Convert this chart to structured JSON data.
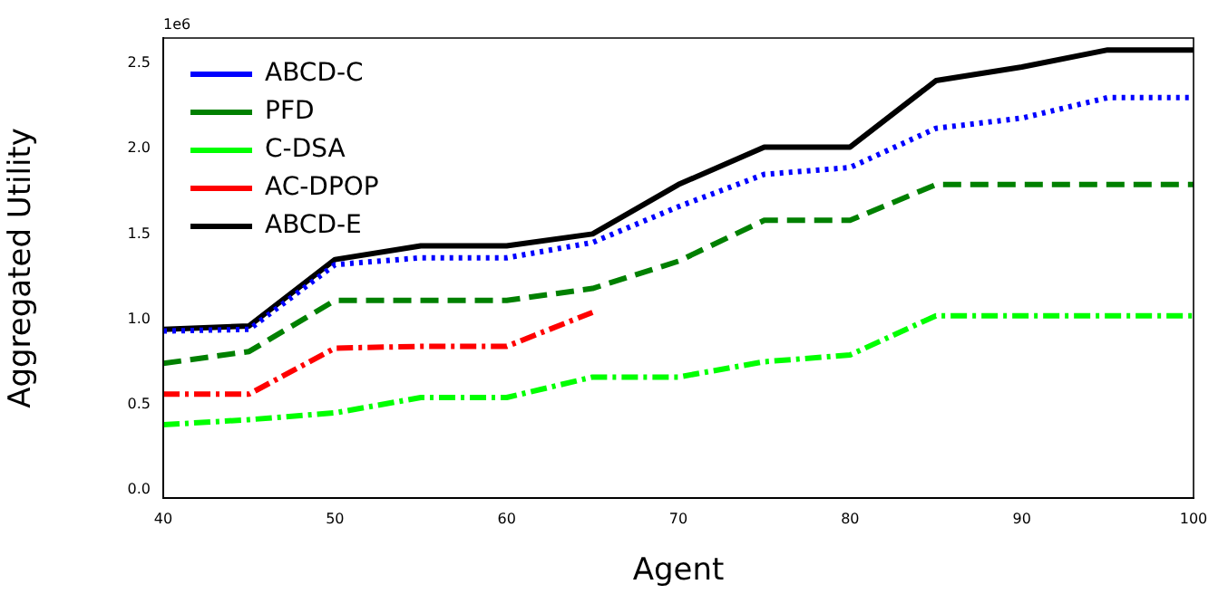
{
  "chart_data": {
    "type": "line",
    "xlabel": "Agent",
    "ylabel": "Aggregated Utility",
    "annotations": [
      "1e6"
    ],
    "x": [
      40,
      45,
      50,
      55,
      60,
      65,
      70,
      75,
      80,
      85,
      90,
      95,
      100
    ],
    "xlim": [
      40,
      100
    ],
    "xticks": [
      40,
      50,
      60,
      70,
      80,
      90,
      100
    ],
    "ylim": [
      -0.05,
      2.65
    ],
    "yticks": [
      {
        "value": 0,
        "label": "0.0"
      },
      {
        "value": 0.5,
        "label": "0.5"
      },
      {
        "value": 1,
        "label": "1.0"
      },
      {
        "value": 1.5,
        "label": "1.5"
      },
      {
        "value": 2,
        "label": "2.0"
      },
      {
        "value": 2.5,
        "label": "2.5"
      }
    ],
    "grid": false,
    "legend": "top left",
    "marker": "none",
    "series": [
      {
        "name": "ABCD-C",
        "color": "#0000ff",
        "line_style": "dotted",
        "values": [
          0.93,
          0.94,
          1.32,
          1.36,
          1.36,
          1.45,
          1.66,
          1.85,
          1.89,
          2.12,
          2.18,
          2.3,
          2.3
        ]
      },
      {
        "name": "PFD",
        "color": "#008000",
        "line_style": "dashed",
        "values": [
          0.74,
          0.81,
          1.11,
          1.11,
          1.11,
          1.18,
          1.34,
          1.58,
          1.58,
          1.79,
          1.79,
          1.79,
          1.79
        ]
      },
      {
        "name": "C-DSA",
        "color": "#00ff00",
        "line_style": "dashdot",
        "values": [
          0.38,
          0.41,
          0.45,
          0.54,
          0.54,
          0.66,
          0.66,
          0.75,
          0.79,
          1.02,
          1.02,
          1.02,
          1.02
        ]
      },
      {
        "name": "AC-DPOP",
        "color": "#ff0000",
        "line_style": "dashdot",
        "values": [
          0.56,
          0.56,
          0.83,
          0.84,
          0.84,
          1.04,
          null,
          null,
          null,
          null,
          null,
          null,
          null
        ]
      },
      {
        "name": "ABCD-E",
        "color": "#000000",
        "line_style": "solid",
        "values": [
          0.94,
          0.96,
          1.35,
          1.43,
          1.43,
          1.5,
          1.79,
          2.01,
          2.01,
          2.4,
          2.48,
          2.58,
          2.58
        ]
      }
    ]
  }
}
